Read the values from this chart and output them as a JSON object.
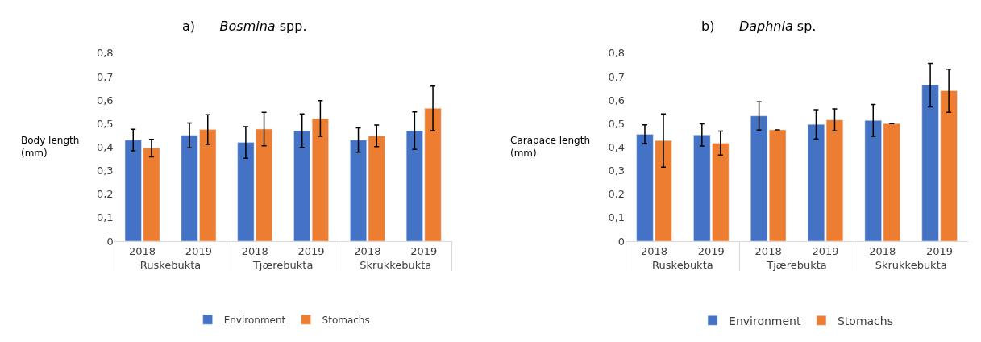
{
  "chart_data": [
    {
      "type": "bar",
      "title": "a) Bosmina spp.",
      "ylabel": "Body length\n(mm)",
      "categories": [
        "2018",
        "2019",
        "2018",
        "2019",
        "2018",
        "2019"
      ],
      "annotations": [
        "Ruskebukta",
        "Tjærebukta",
        "Skrukkebukta"
      ],
      "series": [
        {
          "name": "Environment",
          "color": "#4472c4",
          "values": [
            0.43,
            0.45,
            0.42,
            0.47,
            0.43,
            0.47
          ],
          "errors": [
            0.046,
            0.053,
            0.067,
            0.071,
            0.052,
            0.08
          ]
        },
        {
          "name": "Stomachs",
          "color": "#ed7d31",
          "values": [
            0.396,
            0.475,
            0.477,
            0.522,
            0.448,
            0.565
          ],
          "errors": [
            0.037,
            0.063,
            0.071,
            0.076,
            0.046,
            0.095
          ]
        }
      ],
      "ylim": [
        0,
        0.8
      ],
      "yticks": [
        0,
        {
          "value": 0.1,
          "label": "0,1"
        },
        {
          "value": 0.2,
          "label": "0,2"
        },
        {
          "value": 0.3,
          "label": "0,3"
        },
        {
          "value": 0.4,
          "label": "0,4"
        },
        {
          "value": 0.5,
          "label": "0,5"
        },
        {
          "value": 0.6,
          "label": "0,6"
        },
        {
          "value": 0.7,
          "label": "0,7"
        },
        {
          "value": 0.8,
          "label": "0,8"
        }
      ],
      "grid": false,
      "legend": "bottom"
    },
    {
      "type": "bar",
      "title": "b) Daphnia sp.",
      "ylabel": "Carapace length\n(mm)",
      "categories": [
        "2018",
        "2019",
        "2018",
        "2019",
        "2018",
        "2019"
      ],
      "annotations": [
        "Ruskebukta",
        "Tjærebukta",
        "Skrukkebukta"
      ],
      "series": [
        {
          "name": "Environment",
          "color": "#4472c4",
          "values": [
            0.455,
            0.452,
            0.533,
            0.497,
            0.514,
            0.664
          ],
          "errors": [
            0.04,
            0.047,
            0.06,
            0.062,
            0.068,
            0.093
          ]
        },
        {
          "name": "Stomachs",
          "color": "#ed7d31",
          "values": [
            0.428,
            0.417,
            0.474,
            0.516,
            0.5,
            0.64
          ],
          "errors": [
            0.113,
            0.051,
            0,
            0.047,
            0,
            0.092
          ]
        }
      ],
      "ylim": [
        0,
        0.8
      ],
      "yticks": [
        0,
        {
          "value": 0.1,
          "label": "0,1"
        },
        {
          "value": 0.2,
          "label": "0,2"
        },
        {
          "value": 0.3,
          "label": "0,3"
        },
        {
          "value": 0.4,
          "label": "0,4"
        },
        {
          "value": 0.5,
          "label": "0,5"
        },
        {
          "value": 0.6,
          "label": "0,6"
        },
        {
          "value": 0.7,
          "label": "0,7"
        },
        {
          "value": 0.8,
          "label": "0,8"
        }
      ],
      "grid": false,
      "legend": "bottom"
    }
  ]
}
